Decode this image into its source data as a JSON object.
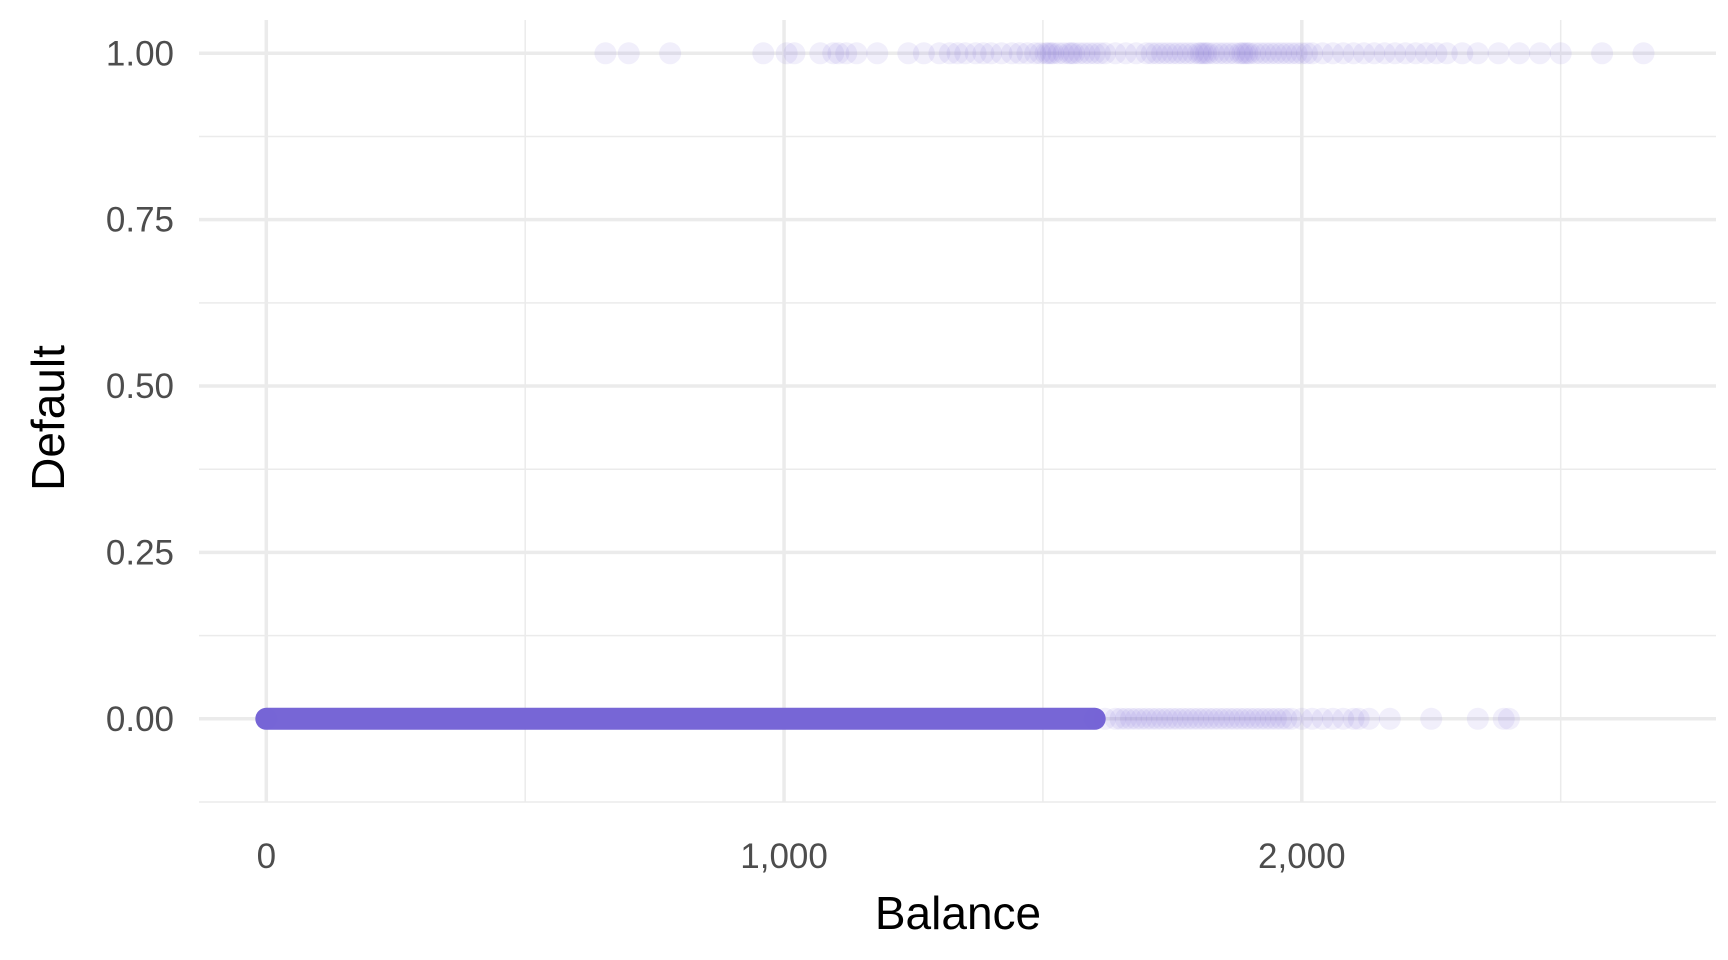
{
  "chart_data": {
    "type": "scatter",
    "title": "",
    "xlabel": "Balance",
    "ylabel": "Default",
    "xlim": [
      -130,
      2800
    ],
    "ylim": [
      -0.125,
      1.05
    ],
    "x_ticks": [
      {
        "value": 0,
        "label": "0"
      },
      {
        "value": 1000,
        "label": "1,000"
      },
      {
        "value": 2000,
        "label": "2,000"
      }
    ],
    "x_minor_ticks": [
      500,
      1500,
      2500
    ],
    "y_ticks": [
      {
        "value": 0,
        "label": "0.00"
      },
      {
        "value": 0.25,
        "label": "0.25"
      },
      {
        "value": 0.5,
        "label": "0.50"
      },
      {
        "value": 0.75,
        "label": "0.75"
      },
      {
        "value": 1,
        "label": "1.00"
      }
    ],
    "y_minor_ticks": [
      -0.125,
      0.125,
      0.375,
      0.625,
      0.875
    ],
    "grid": true,
    "legend": "none",
    "point_color": "#7766D6",
    "point_alpha": 0.1,
    "series": [
      {
        "name": "",
        "y": 1,
        "x": [
          655,
          700,
          780,
          960,
          1005,
          1020,
          1070,
          1095,
          1105,
          1120,
          1140,
          1180,
          1240,
          1270,
          1300,
          1320,
          1335,
          1350,
          1370,
          1385,
          1400,
          1420,
          1440,
          1455,
          1470,
          1485,
          1495,
          1505,
          1510,
          1515,
          1520,
          1530,
          1540,
          1550,
          1555,
          1560,
          1570,
          1580,
          1590,
          1600,
          1610,
          1620,
          1640,
          1660,
          1680,
          1700,
          1710,
          1720,
          1730,
          1740,
          1750,
          1760,
          1770,
          1780,
          1790,
          1800,
          1805,
          1810,
          1815,
          1820,
          1830,
          1840,
          1850,
          1860,
          1870,
          1880,
          1885,
          1890,
          1895,
          1900,
          1910,
          1920,
          1930,
          1940,
          1950,
          1960,
          1970,
          1980,
          1990,
          2000,
          2010,
          2020,
          2040,
          2060,
          2080,
          2100,
          2120,
          2140,
          2160,
          2180,
          2200,
          2220,
          2240,
          2260,
          2280,
          2310,
          2340,
          2380,
          2420,
          2460,
          2500,
          2580,
          2660
        ]
      },
      {
        "name": "",
        "y": 0,
        "x": [
          0,
          1600,
          1620,
          1640,
          1650,
          1660,
          1670,
          1680,
          1690,
          1700,
          1710,
          1720,
          1730,
          1740,
          1750,
          1760,
          1770,
          1780,
          1790,
          1800,
          1810,
          1820,
          1830,
          1840,
          1850,
          1860,
          1870,
          1880,
          1890,
          1900,
          1910,
          1920,
          1930,
          1940,
          1950,
          1960,
          1970,
          1980,
          2000,
          2020,
          2040,
          2060,
          2080,
          2100,
          2110,
          2130,
          2170,
          2250,
          2340,
          2390,
          2400
        ]
      }
    ],
    "dense_band": {
      "y": 0,
      "x_from": 0,
      "x_to": 1600
    }
  }
}
